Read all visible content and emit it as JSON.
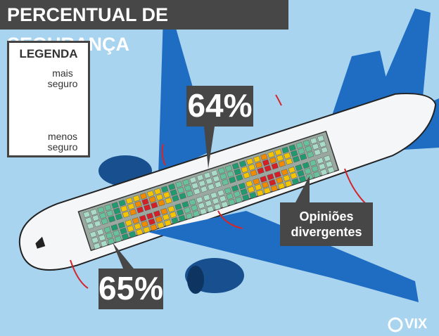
{
  "header": {
    "title": "PERCENTUAL DE SEGURANÇA"
  },
  "legend": {
    "title": "LEGENDA",
    "top_label": "mais seguro",
    "bottom_label": "menos seguro"
  },
  "callouts": {
    "front": "65%",
    "rear": "64%",
    "wings": "Opiniões divergentes"
  },
  "brand": "VIX"
}
